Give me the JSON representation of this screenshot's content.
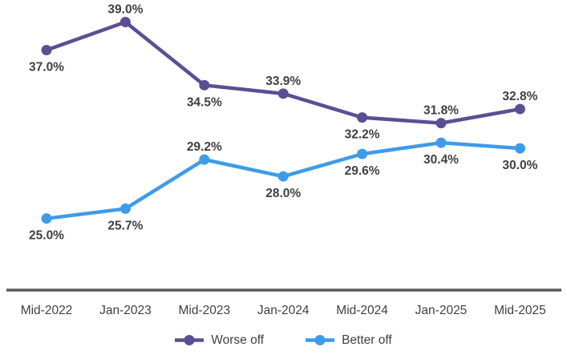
{
  "chart_data": {
    "type": "line",
    "title": "",
    "xlabel": "",
    "ylabel": "",
    "categories": [
      "Mid-2022",
      "Jan-2023",
      "Mid-2023",
      "Jan-2024",
      "Mid-2024",
      "Jan-2025",
      "Mid-2025"
    ],
    "series": [
      {
        "name": "Worse off",
        "color": "#5C4E93",
        "values": [
          37.0,
          39.0,
          34.5,
          33.9,
          32.2,
          31.8,
          32.8
        ],
        "label_positions": [
          "below",
          "above",
          "below",
          "above",
          "below",
          "above",
          "above"
        ]
      },
      {
        "name": "Better off",
        "color": "#3E9BE8",
        "values": [
          25.0,
          25.7,
          29.2,
          28.0,
          29.6,
          30.4,
          30.0
        ],
        "label_positions": [
          "below",
          "below",
          "above",
          "below",
          "below",
          "below",
          "below"
        ]
      }
    ],
    "data_label_format": {
      "decimals": 1,
      "suffix": "%"
    },
    "ylim": [
      19.9,
      40.0
    ],
    "grid": false,
    "legend_position": "bottom",
    "axis_line_color": "#595959",
    "label_color": "#404040"
  }
}
